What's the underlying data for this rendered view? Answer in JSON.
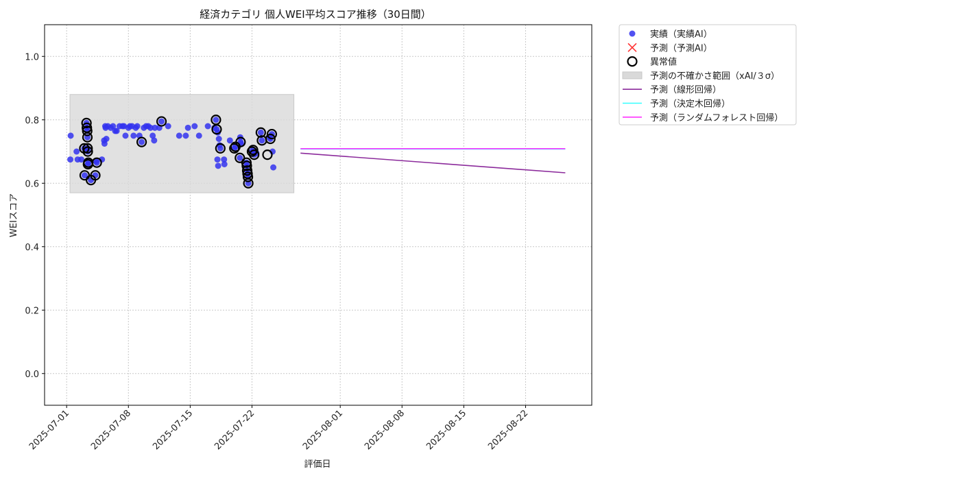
{
  "chart_data": {
    "type": "scatter",
    "title": "経済カテゴリ 個人WEI平均スコア推移（30日間）",
    "xlabel": "評価日",
    "ylabel": "WEIスコア",
    "ylim": [
      -0.1,
      1.1
    ],
    "xlim": [
      "2025-06-28T12:00",
      "2025-08-29T12:00"
    ],
    "x_ticks": [
      "2025-07-01",
      "2025-07-08",
      "2025-07-15",
      "2025-07-22",
      "2025-08-01",
      "2025-08-08",
      "2025-08-15",
      "2025-08-22"
    ],
    "y_ticks": [
      "0.0",
      "0.2",
      "0.4",
      "0.6",
      "0.8",
      "1.0"
    ],
    "grid": true,
    "legend_position": "outside-top-right",
    "colors": {
      "actual": "#3333ee",
      "predicted_marker": "#ff3333",
      "outlier_edge": "#000000",
      "uncertainty_band": "#d9d9d9",
      "linear": "#8b2a9b",
      "decision_tree": "#33ffff",
      "random_forest": "#ff33ff"
    },
    "legend": [
      {
        "label": "実績（実績AI）",
        "marker": "circle"
      },
      {
        "label": "予測（予測AI）",
        "marker": "x"
      },
      {
        "label": "異常値",
        "marker": "ring"
      },
      {
        "label": "予測の不確かさ範囲（xAI/３σ）",
        "marker": "band"
      },
      {
        "label": "予測（線形回帰）",
        "marker": "line"
      },
      {
        "label": "予測（決定木回帰）",
        "marker": "line"
      },
      {
        "label": "予測（ランダムフォレスト回帰）",
        "marker": "line"
      }
    ],
    "uncertainty_band": {
      "x": [
        "2025-07-01T09:00",
        "2025-07-26T18:00"
      ],
      "y": [
        0.57,
        0.88
      ]
    },
    "series": [
      {
        "name": "実績（実績AI）",
        "type": "scatter",
        "points": [
          [
            "2025-07-01T10:00",
            0.675
          ],
          [
            "2025-07-01T11:00",
            0.75
          ],
          [
            "2025-07-02T03:00",
            0.7
          ],
          [
            "2025-07-02T06:00",
            0.675
          ],
          [
            "2025-07-02T16:00",
            0.675
          ],
          [
            "2025-07-03T00:00",
            0.71
          ],
          [
            "2025-07-03T01:00",
            0.625
          ],
          [
            "2025-07-03T06:00",
            0.79
          ],
          [
            "2025-07-03T07:00",
            0.775
          ],
          [
            "2025-07-03T08:00",
            0.765
          ],
          [
            "2025-07-03T08:30",
            0.745
          ],
          [
            "2025-07-03T09:00",
            0.71
          ],
          [
            "2025-07-03T09:30",
            0.7
          ],
          [
            "2025-07-03T10:00",
            0.66
          ],
          [
            "2025-07-03T11:00",
            0.665
          ],
          [
            "2025-07-03T18:00",
            0.61
          ],
          [
            "2025-07-04T06:00",
            0.625
          ],
          [
            "2025-07-04T08:00",
            0.67
          ],
          [
            "2025-07-04T10:00",
            0.665
          ],
          [
            "2025-07-05T00:00",
            0.675
          ],
          [
            "2025-07-05T06:00",
            0.735
          ],
          [
            "2025-07-05T07:00",
            0.725
          ],
          [
            "2025-07-05T09:00",
            0.78
          ],
          [
            "2025-07-05T10:00",
            0.775
          ],
          [
            "2025-07-05T12:00",
            0.74
          ],
          [
            "2025-07-05T16:00",
            0.78
          ],
          [
            "2025-07-06T00:00",
            0.775
          ],
          [
            "2025-07-06T06:00",
            0.78
          ],
          [
            "2025-07-06T12:00",
            0.765
          ],
          [
            "2025-07-06T16:00",
            0.765
          ],
          [
            "2025-07-07T00:00",
            0.78
          ],
          [
            "2025-07-07T08:00",
            0.78
          ],
          [
            "2025-07-07T12:00",
            0.78
          ],
          [
            "2025-07-07T16:00",
            0.75
          ],
          [
            "2025-07-08T00:00",
            0.775
          ],
          [
            "2025-07-08T04:00",
            0.78
          ],
          [
            "2025-07-08T10:00",
            0.78
          ],
          [
            "2025-07-08T14:00",
            0.75
          ],
          [
            "2025-07-08T20:00",
            0.775
          ],
          [
            "2025-07-09T00:00",
            0.78
          ],
          [
            "2025-07-09T06:00",
            0.75
          ],
          [
            "2025-07-09T12:00",
            0.73
          ],
          [
            "2025-07-09T18:00",
            0.775
          ],
          [
            "2025-07-10T00:00",
            0.78
          ],
          [
            "2025-07-10T06:00",
            0.78
          ],
          [
            "2025-07-10T12:00",
            0.775
          ],
          [
            "2025-07-10T18:00",
            0.75
          ],
          [
            "2025-07-10T22:00",
            0.735
          ],
          [
            "2025-07-11T00:00",
            0.775
          ],
          [
            "2025-07-11T12:00",
            0.775
          ],
          [
            "2025-07-11T18:00",
            0.795
          ],
          [
            "2025-07-12T12:00",
            0.78
          ],
          [
            "2025-07-13T18:00",
            0.75
          ],
          [
            "2025-07-14T12:00",
            0.75
          ],
          [
            "2025-07-14T18:00",
            0.775
          ],
          [
            "2025-07-15T12:00",
            0.78
          ],
          [
            "2025-07-16T00:00",
            0.75
          ],
          [
            "2025-07-17T00:00",
            0.78
          ],
          [
            "2025-07-17T18:00",
            0.775
          ],
          [
            "2025-07-17T22:00",
            0.8
          ],
          [
            "2025-07-18T00:00",
            0.77
          ],
          [
            "2025-07-18T03:00",
            0.76
          ],
          [
            "2025-07-18T06:00",
            0.74
          ],
          [
            "2025-07-18T08:00",
            0.72
          ],
          [
            "2025-07-18T10:00",
            0.71
          ],
          [
            "2025-07-18T02:00",
            0.675
          ],
          [
            "2025-07-18T04:00",
            0.655
          ],
          [
            "2025-07-18T20:00",
            0.675
          ],
          [
            "2025-07-18T21:00",
            0.66
          ],
          [
            "2025-07-19T12:00",
            0.735
          ],
          [
            "2025-07-20T00:00",
            0.71
          ],
          [
            "2025-07-20T03:00",
            0.715
          ],
          [
            "2025-07-20T15:00",
            0.68
          ],
          [
            "2025-07-20T16:00",
            0.745
          ],
          [
            "2025-07-20T17:00",
            0.73
          ],
          [
            "2025-07-20T18:00",
            0.725
          ],
          [
            "2025-07-21T09:00",
            0.665
          ],
          [
            "2025-07-21T10:00",
            0.655
          ],
          [
            "2025-07-21T11:00",
            0.64
          ],
          [
            "2025-07-21T12:00",
            0.63
          ],
          [
            "2025-07-21T13:00",
            0.62
          ],
          [
            "2025-07-21T14:00",
            0.6
          ],
          [
            "2025-07-22T00:00",
            0.7
          ],
          [
            "2025-07-22T03:00",
            0.705
          ],
          [
            "2025-07-22T06:00",
            0.69
          ],
          [
            "2025-07-22T12:00",
            0.695
          ],
          [
            "2025-07-23T00:00",
            0.76
          ],
          [
            "2025-07-23T03:00",
            0.735
          ],
          [
            "2025-07-24T00:00",
            0.745
          ],
          [
            "2025-07-24T02:00",
            0.74
          ],
          [
            "2025-07-24T06:00",
            0.755
          ],
          [
            "2025-07-24T08:00",
            0.7
          ],
          [
            "2025-07-24T10:00",
            0.65
          ]
        ]
      },
      {
        "name": "異常値",
        "type": "ring",
        "points": [
          [
            "2025-07-03T01:00",
            0.625
          ],
          [
            "2025-07-03T00:00",
            0.71
          ],
          [
            "2025-07-03T06:00",
            0.79
          ],
          [
            "2025-07-03T07:00",
            0.775
          ],
          [
            "2025-07-03T08:00",
            0.765
          ],
          [
            "2025-07-03T08:30",
            0.745
          ],
          [
            "2025-07-03T09:00",
            0.71
          ],
          [
            "2025-07-03T09:30",
            0.7
          ],
          [
            "2025-07-03T10:00",
            0.66
          ],
          [
            "2025-07-03T11:00",
            0.665
          ],
          [
            "2025-07-03T18:00",
            0.61
          ],
          [
            "2025-07-04T06:00",
            0.625
          ],
          [
            "2025-07-04T10:00",
            0.665
          ],
          [
            "2025-07-09T12:00",
            0.73
          ],
          [
            "2025-07-11T18:00",
            0.795
          ],
          [
            "2025-07-17T22:00",
            0.8
          ],
          [
            "2025-07-18T00:00",
            0.77
          ],
          [
            "2025-07-18T10:00",
            0.71
          ],
          [
            "2025-07-20T00:00",
            0.71
          ],
          [
            "2025-07-20T03:00",
            0.715
          ],
          [
            "2025-07-20T15:00",
            0.68
          ],
          [
            "2025-07-20T17:00",
            0.73
          ],
          [
            "2025-07-21T09:00",
            0.665
          ],
          [
            "2025-07-21T10:00",
            0.655
          ],
          [
            "2025-07-21T11:00",
            0.64
          ],
          [
            "2025-07-21T12:00",
            0.63
          ],
          [
            "2025-07-21T13:00",
            0.62
          ],
          [
            "2025-07-21T14:00",
            0.6
          ],
          [
            "2025-07-22T00:00",
            0.7
          ],
          [
            "2025-07-22T03:00",
            0.705
          ],
          [
            "2025-07-22T06:00",
            0.69
          ],
          [
            "2025-07-23T00:00",
            0.76
          ],
          [
            "2025-07-23T03:00",
            0.735
          ],
          [
            "2025-07-23T18:00",
            0.69
          ],
          [
            "2025-07-24T02:00",
            0.74
          ],
          [
            "2025-07-24T06:00",
            0.755
          ]
        ]
      },
      {
        "name": "予測（線形回帰）",
        "type": "line",
        "points": [
          [
            "2025-07-27T12:00",
            0.695
          ],
          [
            "2025-08-26T12:00",
            0.633
          ]
        ]
      },
      {
        "name": "予測（決定木回帰）",
        "type": "line",
        "points": [
          [
            "2025-07-27T12:00",
            0.708
          ],
          [
            "2025-08-26T12:00",
            0.708
          ]
        ]
      },
      {
        "name": "予測（ランダムフォレスト回帰）",
        "type": "line",
        "points": [
          [
            "2025-07-27T12:00",
            0.709
          ],
          [
            "2025-08-26T12:00",
            0.709
          ]
        ]
      }
    ]
  }
}
